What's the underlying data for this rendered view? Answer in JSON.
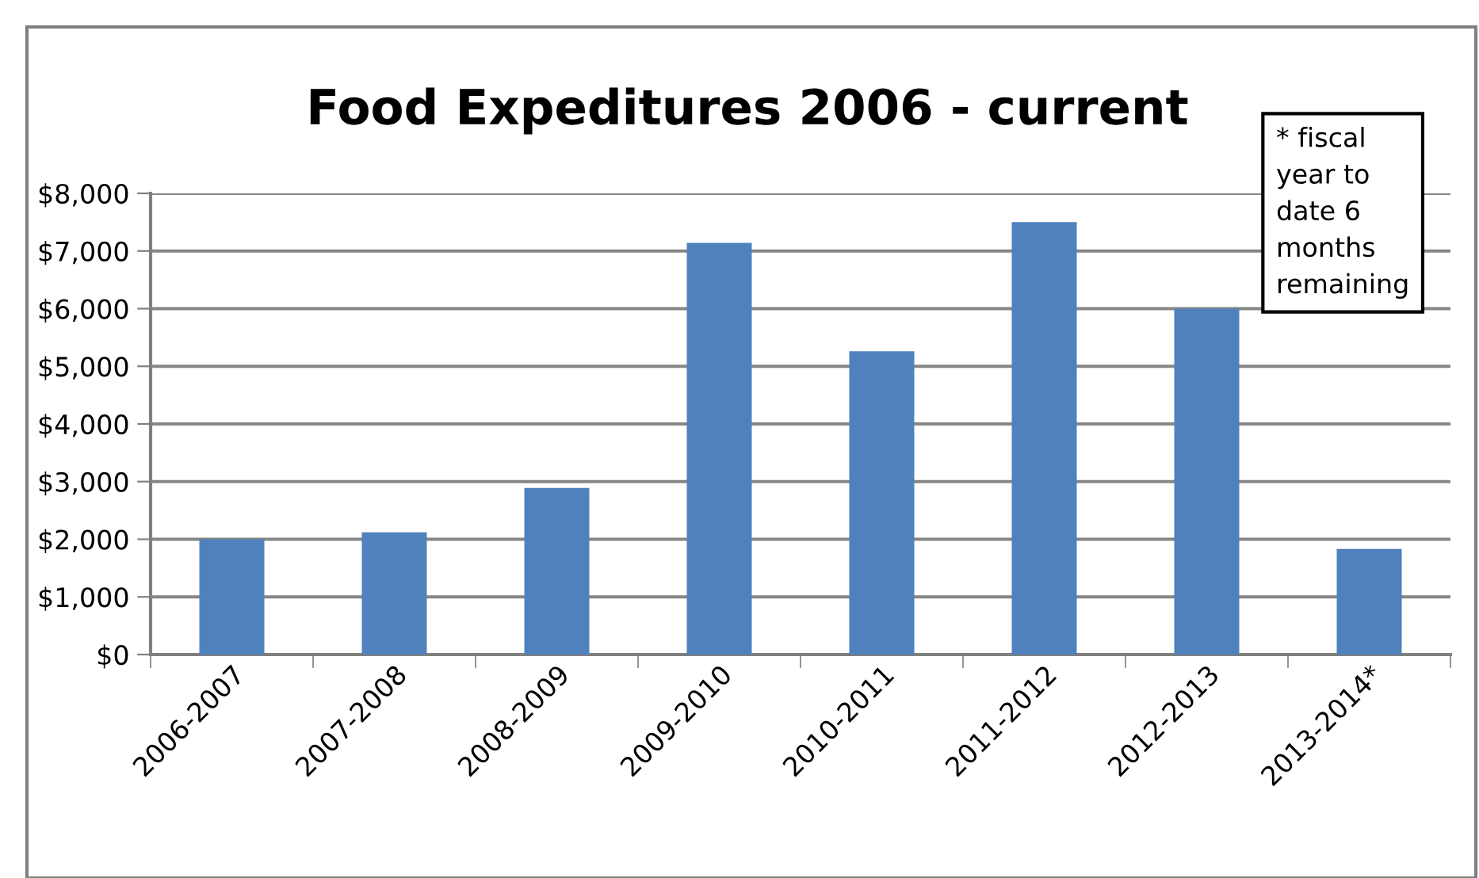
{
  "chart_data": {
    "type": "bar",
    "title": "Food Expeditures 2006 - current",
    "categories": [
      "2006-2007",
      "2007-2008",
      "2008-2009",
      "2009-2010",
      "2010-2011",
      "2011-2012",
      "2012-2013",
      "2013-2014*"
    ],
    "values": [
      2000,
      2120,
      2890,
      7140,
      5260,
      7500,
      6000,
      1830
    ],
    "color": "#4f81bd",
    "ylim": [
      0,
      8000
    ],
    "yticks": [
      {
        "value": 0,
        "label": "$0"
      },
      {
        "value": 1000,
        "label": "$1,000"
      },
      {
        "value": 2000,
        "label": "$2,000"
      },
      {
        "value": 3000,
        "label": "$3,000"
      },
      {
        "value": 4000,
        "label": "$4,000"
      },
      {
        "value": 5000,
        "label": "$5,000"
      },
      {
        "value": 6000,
        "label": "$6,000"
      },
      {
        "value": 7000,
        "label": "$7,000"
      },
      {
        "value": 8000,
        "label": "$8,000"
      }
    ],
    "grid": "y",
    "annotations": [
      "* fiscal\nyear to\ndate 6\nmonths\nremaining"
    ]
  }
}
